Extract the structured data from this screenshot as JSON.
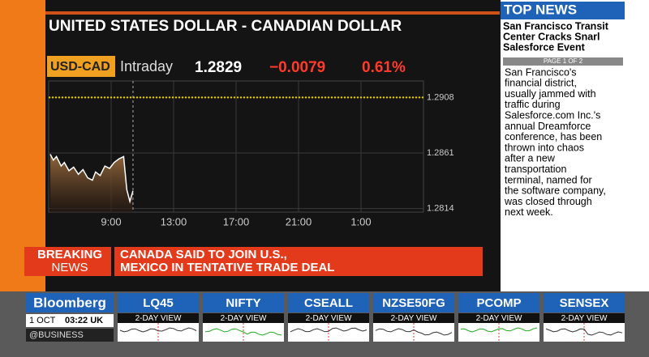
{
  "headline": "UNITED STATES DOLLAR - CANADIAN DOLLAR",
  "quote": {
    "symbol": "USD-CAD",
    "period": "Intraday",
    "last": "1.2829",
    "change": "−0.0079",
    "change_pct": "0.61%"
  },
  "chart_data": {
    "type": "line",
    "color": "#ffffff",
    "reference_line": 1.2908,
    "reference_color": "#e8d000",
    "x": [
      5.1,
      5.3,
      5.5,
      5.8,
      6.0,
      6.3,
      6.6,
      6.9,
      7.2,
      7.5,
      7.8,
      8.0,
      8.3,
      8.6,
      8.9,
      9.2,
      9.5,
      9.8,
      10.0,
      10.2,
      10.4
    ],
    "values": [
      1.286,
      1.2855,
      1.2858,
      1.285,
      1.2853,
      1.2846,
      1.2849,
      1.2843,
      1.2847,
      1.284,
      1.2838,
      1.2845,
      1.2842,
      1.285,
      1.2848,
      1.2853,
      1.2856,
      1.2858,
      1.283,
      1.282,
      1.2829
    ],
    "xlim": [
      5,
      29
    ],
    "ylim": [
      1.2811,
      1.2922
    ],
    "xticks": [
      {
        "value": 9,
        "label": "9:00"
      },
      {
        "value": 13,
        "label": "13:00"
      },
      {
        "value": 17,
        "label": "17:00"
      },
      {
        "value": 21,
        "label": "21:00"
      },
      {
        "value": 25,
        "label": "1:00"
      }
    ],
    "yticks": [
      1.2908,
      1.2861,
      1.2814
    ],
    "grid": true
  },
  "top_news": {
    "title": "TOP NEWS",
    "headline": [
      "San Francisco Transit",
      "Center Cracks Snarl",
      "Salesforce Event"
    ],
    "page": "PAGE 1 OF 2",
    "body": [
      "San Francisco's",
      "financial district,",
      "usually jammed with",
      "traffic during",
      "Salesforce.com Inc.'s",
      "annual Dreamforce",
      "conference, has been",
      "thrown into chaos",
      "after a new",
      "transportation",
      "terminal, named for",
      "the software company,",
      "was closed through",
      "next week."
    ]
  },
  "breaking": {
    "label": [
      "BREAKING",
      "NEWS"
    ],
    "text": [
      "CANADA SAID TO JOIN U.S.,",
      "MEXICO IN TENTATIVE TRADE DEAL"
    ]
  },
  "footer": {
    "brand": "Bloomberg",
    "date": "1 OCT",
    "time": "03:22 UK",
    "handle": "@BUSINESS",
    "tiles": [
      {
        "name": "LQ45",
        "view": "2-DAY VIEW"
      },
      {
        "name": "NIFTY",
        "view": "2-DAY VIEW"
      },
      {
        "name": "CSEALL",
        "view": "2-DAY VIEW"
      },
      {
        "name": "NZSE50FG",
        "view": "2-DAY VIEW"
      },
      {
        "name": "PCOMP",
        "view": "2-DAY VIEW"
      },
      {
        "name": "SENSEX",
        "view": "2-DAY VIEW"
      }
    ]
  }
}
